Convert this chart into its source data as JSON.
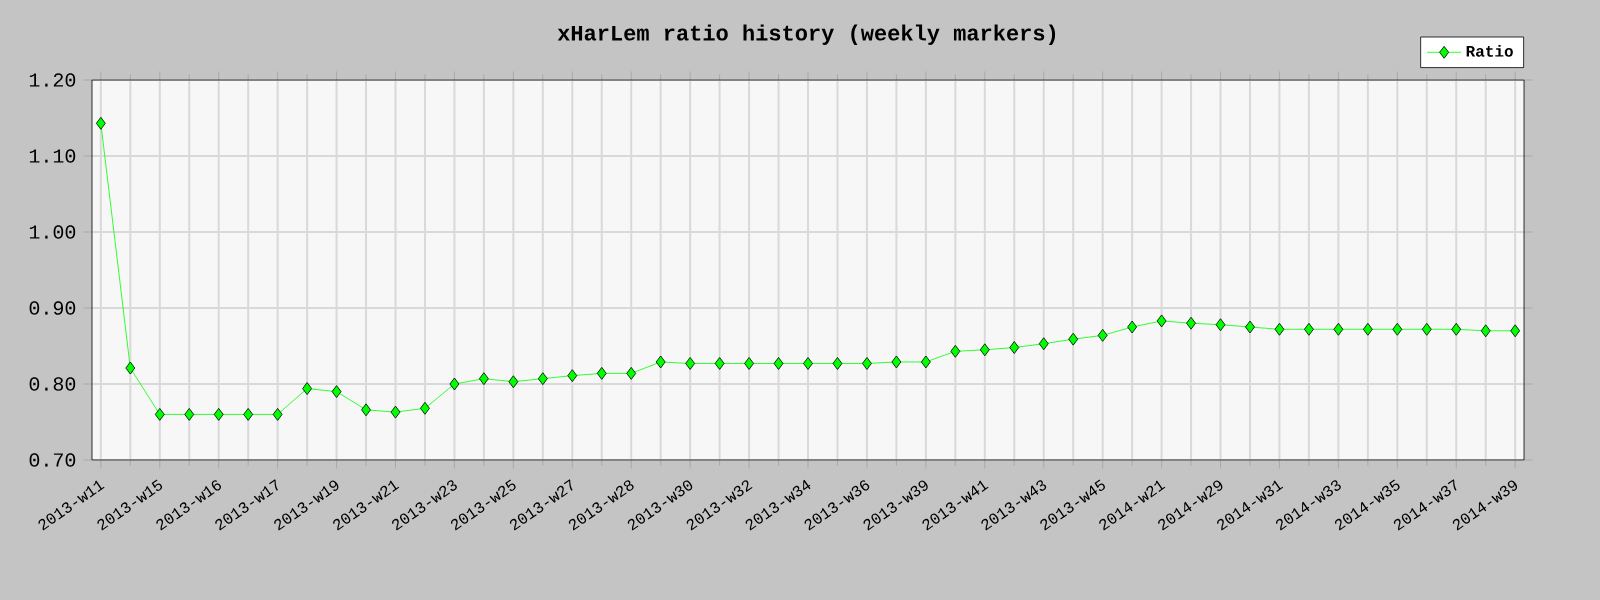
{
  "chart_data": {
    "type": "line",
    "title": "xHarLem ratio history (weekly markers)",
    "categories": [
      "2013-w11",
      null,
      "2013-w15",
      null,
      "2013-w16",
      null,
      "2013-w17",
      null,
      "2013-w19",
      null,
      "2013-w21",
      null,
      "2013-w23",
      null,
      "2013-w25",
      null,
      "2013-w27",
      null,
      "2013-w28",
      null,
      "2013-w30",
      null,
      "2013-w32",
      null,
      "2013-w34",
      null,
      "2013-w36",
      null,
      "2013-w39",
      null,
      "2013-w41",
      null,
      "2013-w43",
      null,
      "2013-w45",
      null,
      "2014-w21",
      null,
      "2014-w29",
      null,
      "2014-w31",
      null,
      "2014-w33",
      null,
      "2014-w35",
      null,
      "2014-w37",
      null,
      "2014-w39"
    ],
    "series": [
      {
        "name": "Ratio",
        "color": "#00ff00",
        "values": [
          1.143,
          0.821,
          0.76,
          0.76,
          0.76,
          0.76,
          0.76,
          0.794,
          0.79,
          0.766,
          0.763,
          0.768,
          0.8,
          0.807,
          0.803,
          0.807,
          0.811,
          0.814,
          0.814,
          0.829,
          0.827,
          0.827,
          0.827,
          0.827,
          0.827,
          0.827,
          0.827,
          0.829,
          0.829,
          0.843,
          0.845,
          0.848,
          0.853,
          0.859,
          0.864,
          0.875,
          0.883,
          0.88,
          0.878,
          0.875,
          0.872,
          0.872,
          0.872,
          0.872,
          0.872,
          0.872,
          0.872,
          0.87,
          0.87
        ]
      }
    ],
    "ylim": [
      0.7,
      1.2
    ],
    "yticks": [
      {
        "value": 0.7,
        "label": "0.70"
      },
      {
        "value": 0.8,
        "label": "0.80"
      },
      {
        "value": 0.9,
        "label": "0.90"
      },
      {
        "value": 1.0,
        "label": "1.00"
      },
      {
        "value": 1.1,
        "label": "1.10"
      },
      {
        "value": 1.2,
        "label": "1.20"
      }
    ],
    "grid": true,
    "legend": "top right",
    "marker": "diamond",
    "line_style": "solid"
  }
}
